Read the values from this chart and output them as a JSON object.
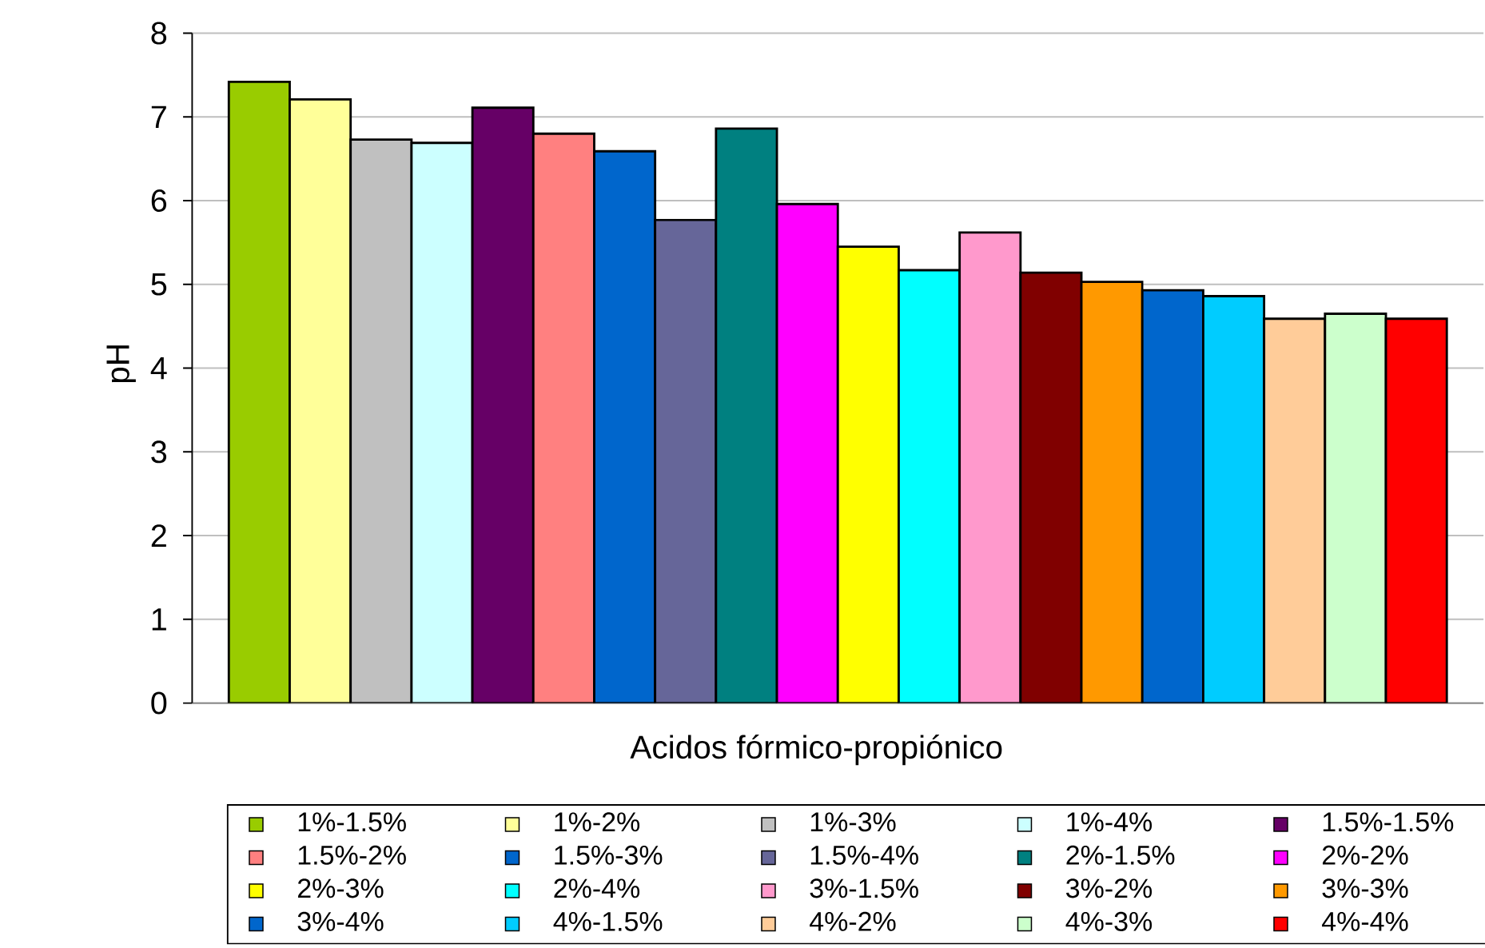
{
  "chart_data": {
    "type": "bar",
    "categories": [
      null
    ],
    "xlabel": "Acidos fórmico-propiónico",
    "ylabel": "pH",
    "ylim": [
      0,
      8
    ],
    "yticks": [
      0,
      1,
      2,
      3,
      4,
      5,
      6,
      7,
      8
    ],
    "grid": "y",
    "legend": "bottom",
    "series": [
      {
        "name": "1%-1.5%",
        "color": "#99cc00",
        "values": [
          7.42
        ]
      },
      {
        "name": "1%-2%",
        "color": "#ffff99",
        "values": [
          7.21
        ]
      },
      {
        "name": "1%-3%",
        "color": "#c0c0c0",
        "values": [
          6.73
        ]
      },
      {
        "name": "1%-4%",
        "color": "#ccffff",
        "values": [
          6.69
        ]
      },
      {
        "name": "1.5%-1.5%",
        "color": "#660066",
        "values": [
          7.11
        ]
      },
      {
        "name": "1.5%-2%",
        "color": "#ff8080",
        "values": [
          6.8
        ]
      },
      {
        "name": "1.5%-3%",
        "color": "#0066cc",
        "values": [
          6.59
        ]
      },
      {
        "name": "1.5%-4%",
        "color": "#666699",
        "values": [
          5.77
        ]
      },
      {
        "name": "2%-1.5%",
        "color": "#008080",
        "values": [
          6.86
        ]
      },
      {
        "name": "2%-2%",
        "color": "#ff00ff",
        "values": [
          5.96
        ]
      },
      {
        "name": "2%-3%",
        "color": "#ffff00",
        "values": [
          5.45
        ]
      },
      {
        "name": "2%-4%",
        "color": "#00ffff",
        "values": [
          5.17
        ]
      },
      {
        "name": "3%-1.5%",
        "color": "#ff99cc",
        "values": [
          5.62
        ]
      },
      {
        "name": "3%-2%",
        "color": "#800000",
        "values": [
          5.14
        ]
      },
      {
        "name": "3%-3%",
        "color": "#ff9900",
        "values": [
          5.03
        ]
      },
      {
        "name": "3%-4%",
        "color": "#0066cc",
        "values": [
          4.93
        ]
      },
      {
        "name": "4%-1.5%",
        "color": "#00ccff",
        "values": [
          4.86
        ]
      },
      {
        "name": "4%-2%",
        "color": "#ffcc99",
        "values": [
          4.59
        ]
      },
      {
        "name": "4%-3%",
        "color": "#ccffcc",
        "values": [
          4.65
        ]
      },
      {
        "name": "4%-4%",
        "color": "#ff0000",
        "values": [
          4.59
        ]
      }
    ]
  }
}
